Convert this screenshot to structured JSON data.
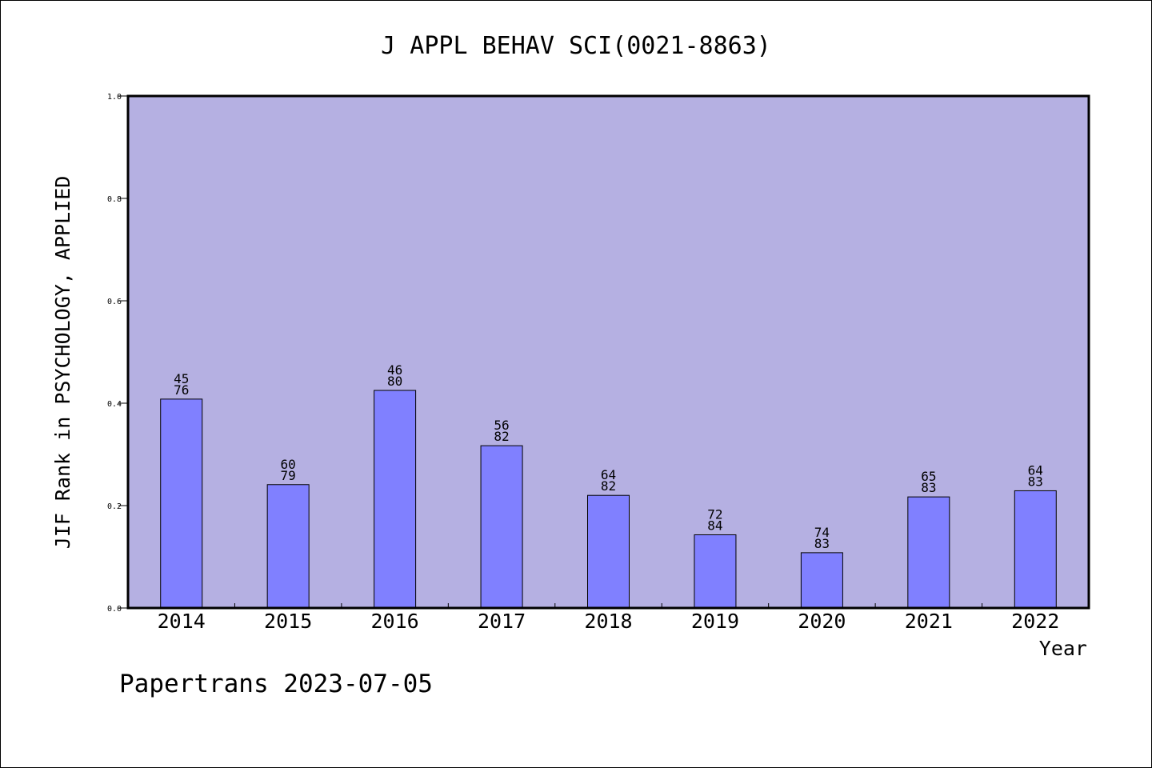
{
  "chart_data": {
    "type": "bar",
    "title": "J APPL BEHAV SCI(0021-8863)",
    "ylabel": "JIF Rank in PSYCHOLOGY, APPLIED",
    "xlabel": "Year",
    "ylim": [
      0,
      1.0
    ],
    "yticks": [
      "0.0",
      "0.2",
      "0.4",
      "0.6",
      "0.8",
      "1.0"
    ],
    "ytick_values": [
      0.0,
      0.2,
      0.4,
      0.6,
      0.8,
      1.0
    ],
    "categories": [
      "2014",
      "2015",
      "2016",
      "2017",
      "2018",
      "2019",
      "2020",
      "2021",
      "2022"
    ],
    "values": [
      0.408,
      0.241,
      0.425,
      0.317,
      0.22,
      0.143,
      0.108,
      0.217,
      0.229
    ],
    "rank": [
      "45",
      "60",
      "46",
      "56",
      "64",
      "72",
      "74",
      "65",
      "64"
    ],
    "total": [
      "76",
      "79",
      "80",
      "82",
      "82",
      "84",
      "83",
      "83",
      "83"
    ],
    "grid": false,
    "colors": {
      "plot_bg": "#b5b0e2",
      "bar": "#8080ff",
      "bar_edge": "#000000"
    }
  },
  "footer": {
    "credit": "Papertrans 2023-07-05"
  }
}
